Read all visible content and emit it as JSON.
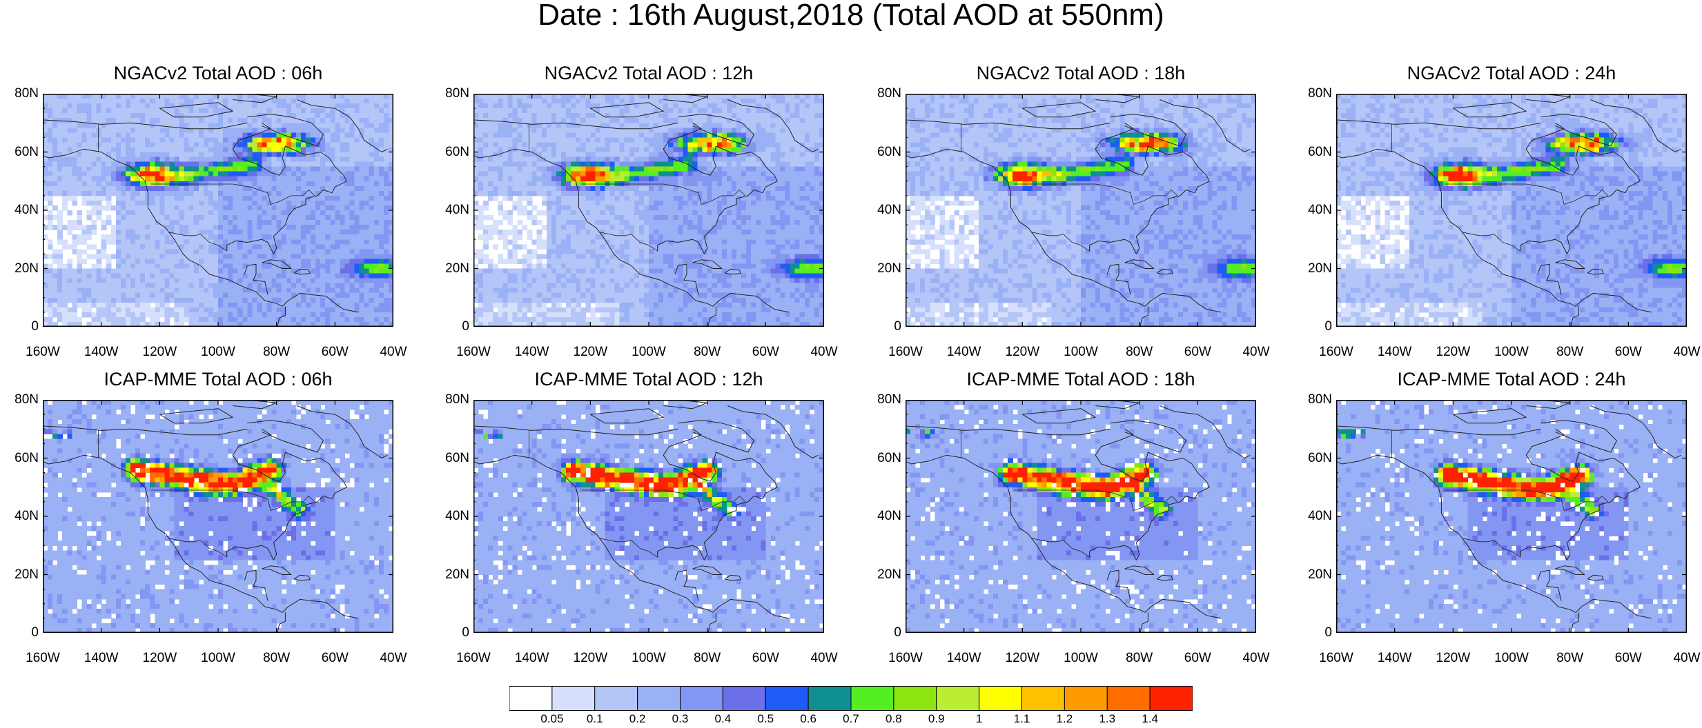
{
  "figure_title": "Date : 16th August,2018 (Total AOD at 550nm)",
  "panels": [
    {
      "title": "NGACv2 Total AOD : 06h",
      "model": "NGACv2",
      "hour": "06h"
    },
    {
      "title": "NGACv2 Total AOD : 12h",
      "model": "NGACv2",
      "hour": "12h"
    },
    {
      "title": "NGACv2 Total AOD : 18h",
      "model": "NGACv2",
      "hour": "18h"
    },
    {
      "title": "NGACv2 Total AOD : 24h",
      "model": "NGACv2",
      "hour": "24h"
    },
    {
      "title": "ICAP-MME Total AOD : 06h",
      "model": "ICAP-MME",
      "hour": "06h"
    },
    {
      "title": "ICAP-MME Total AOD : 12h",
      "model": "ICAP-MME",
      "hour": "12h"
    },
    {
      "title": "ICAP-MME Total AOD : 18h",
      "model": "ICAP-MME",
      "hour": "18h"
    },
    {
      "title": "ICAP-MME Total AOD : 24h",
      "model": "ICAP-MME",
      "hour": "24h"
    }
  ],
  "lat_ticks": [
    "80N",
    "60N",
    "40N",
    "20N",
    "0"
  ],
  "lon_ticks": [
    "160W",
    "140W",
    "120W",
    "100W",
    "80W",
    "60W",
    "40W"
  ],
  "colorbar": {
    "labels": [
      "0.05",
      "0.1",
      "0.2",
      "0.3",
      "0.4",
      "0.5",
      "0.6",
      "0.7",
      "0.8",
      "0.9",
      "1",
      "1.1",
      "1.2",
      "1.3",
      "1.4"
    ],
    "colors": [
      "#ffffff",
      "#d6e0fc",
      "#b4c6f8",
      "#9bb1f6",
      "#8396f2",
      "#6b6fe8",
      "#1f5cf5",
      "#0f8f8f",
      "#55ee22",
      "#8ee411",
      "#bbee33",
      "#ffff00",
      "#ffc000",
      "#ff9a00",
      "#ff6d00",
      "#ff2200"
    ]
  },
  "plumes": {
    "ngac": {
      "smoke_west": [
        -122,
        52
      ],
      "smoke_east": [
        -80,
        63
      ],
      "saharan_dust": [
        -45,
        20
      ]
    },
    "icap": {
      "smoke_band": [
        [
          -128,
          56
        ],
        [
          -110,
          53
        ],
        [
          -95,
          51
        ],
        [
          -82,
          56
        ]
      ],
      "east_extension": [
        -72,
        42
      ]
    }
  }
}
